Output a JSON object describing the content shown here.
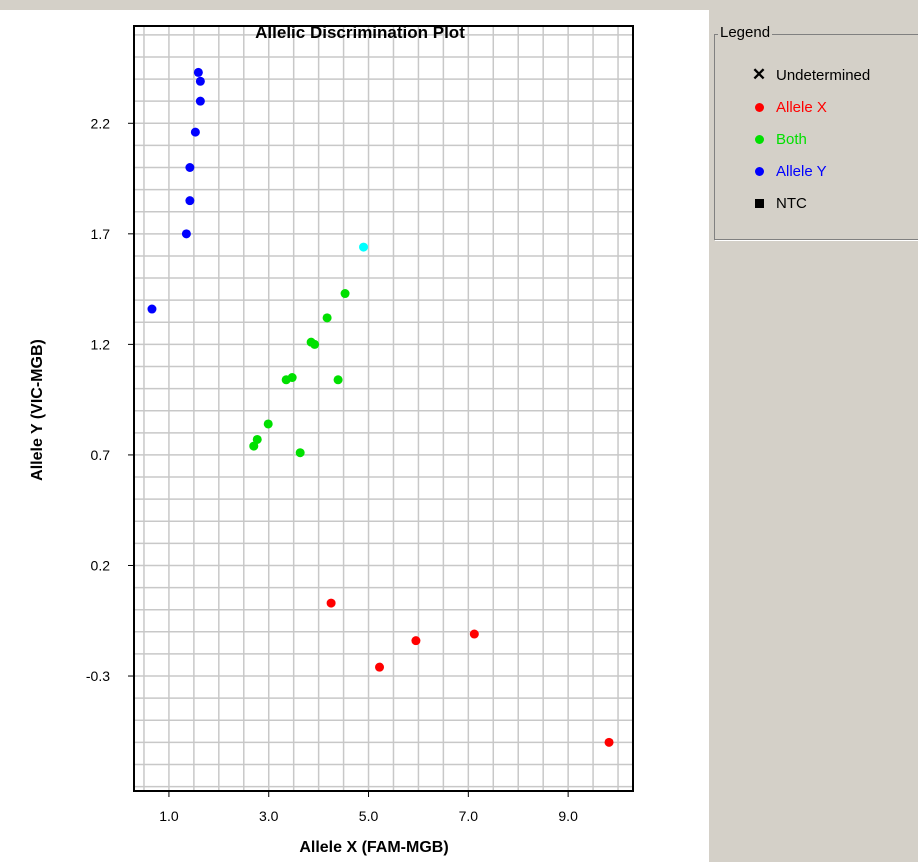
{
  "legend": {
    "title": "Legend",
    "items": [
      {
        "label": "Undetermined",
        "color": "#000000",
        "icon": "x-mark-icon"
      },
      {
        "label": "Allele X",
        "color": "#ff0000",
        "icon": "red-dot-icon"
      },
      {
        "label": "Both",
        "color": "#00e000",
        "icon": "green-dot-icon"
      },
      {
        "label": "Allele Y",
        "color": "#0000ff",
        "icon": "blue-dot-icon"
      },
      {
        "label": "NTC",
        "color": "#000000",
        "icon": "black-square-icon"
      }
    ]
  },
  "chart_data": {
    "type": "scatter",
    "title": "Allelic Discrimination Plot",
    "xlabel": "Allele X (FAM-MGB)",
    "ylabel": "Allele Y (VIC-MGB)",
    "xlim": [
      0.3,
      10.3
    ],
    "ylim": [
      -0.82,
      2.64
    ],
    "xticks": [
      "1.0",
      "3.0",
      "5.0",
      "7.0",
      "9.0"
    ],
    "yticks": [
      "-0.3",
      "0.2",
      "0.7",
      "1.2",
      "1.7",
      "2.2"
    ],
    "grid": true,
    "series": [
      {
        "name": "Allele Y",
        "color": "#0000ff",
        "points": [
          [
            1.59,
            2.43
          ],
          [
            1.63,
            2.39
          ],
          [
            1.63,
            2.3
          ],
          [
            1.53,
            2.16
          ],
          [
            1.42,
            2.0
          ],
          [
            1.42,
            1.85
          ],
          [
            1.35,
            1.7
          ],
          [
            0.66,
            1.36
          ]
        ]
      },
      {
        "name": "Both",
        "color": "#00e000",
        "points": [
          [
            4.53,
            1.43
          ],
          [
            4.17,
            1.32
          ],
          [
            3.85,
            1.21
          ],
          [
            3.92,
            1.2
          ],
          [
            3.47,
            1.05
          ],
          [
            3.35,
            1.04
          ],
          [
            4.39,
            1.04
          ],
          [
            2.99,
            0.84
          ],
          [
            2.77,
            0.77
          ],
          [
            2.7,
            0.74
          ],
          [
            3.63,
            0.71
          ]
        ]
      },
      {
        "name": "Allele X",
        "color": "#ff0000",
        "points": [
          [
            4.25,
            0.03
          ],
          [
            7.12,
            -0.11
          ],
          [
            5.95,
            -0.14
          ],
          [
            5.22,
            -0.26
          ],
          [
            9.82,
            -0.6
          ]
        ]
      },
      {
        "color": "#00ffff",
        "points": [
          [
            4.9,
            1.64
          ]
        ]
      }
    ]
  }
}
